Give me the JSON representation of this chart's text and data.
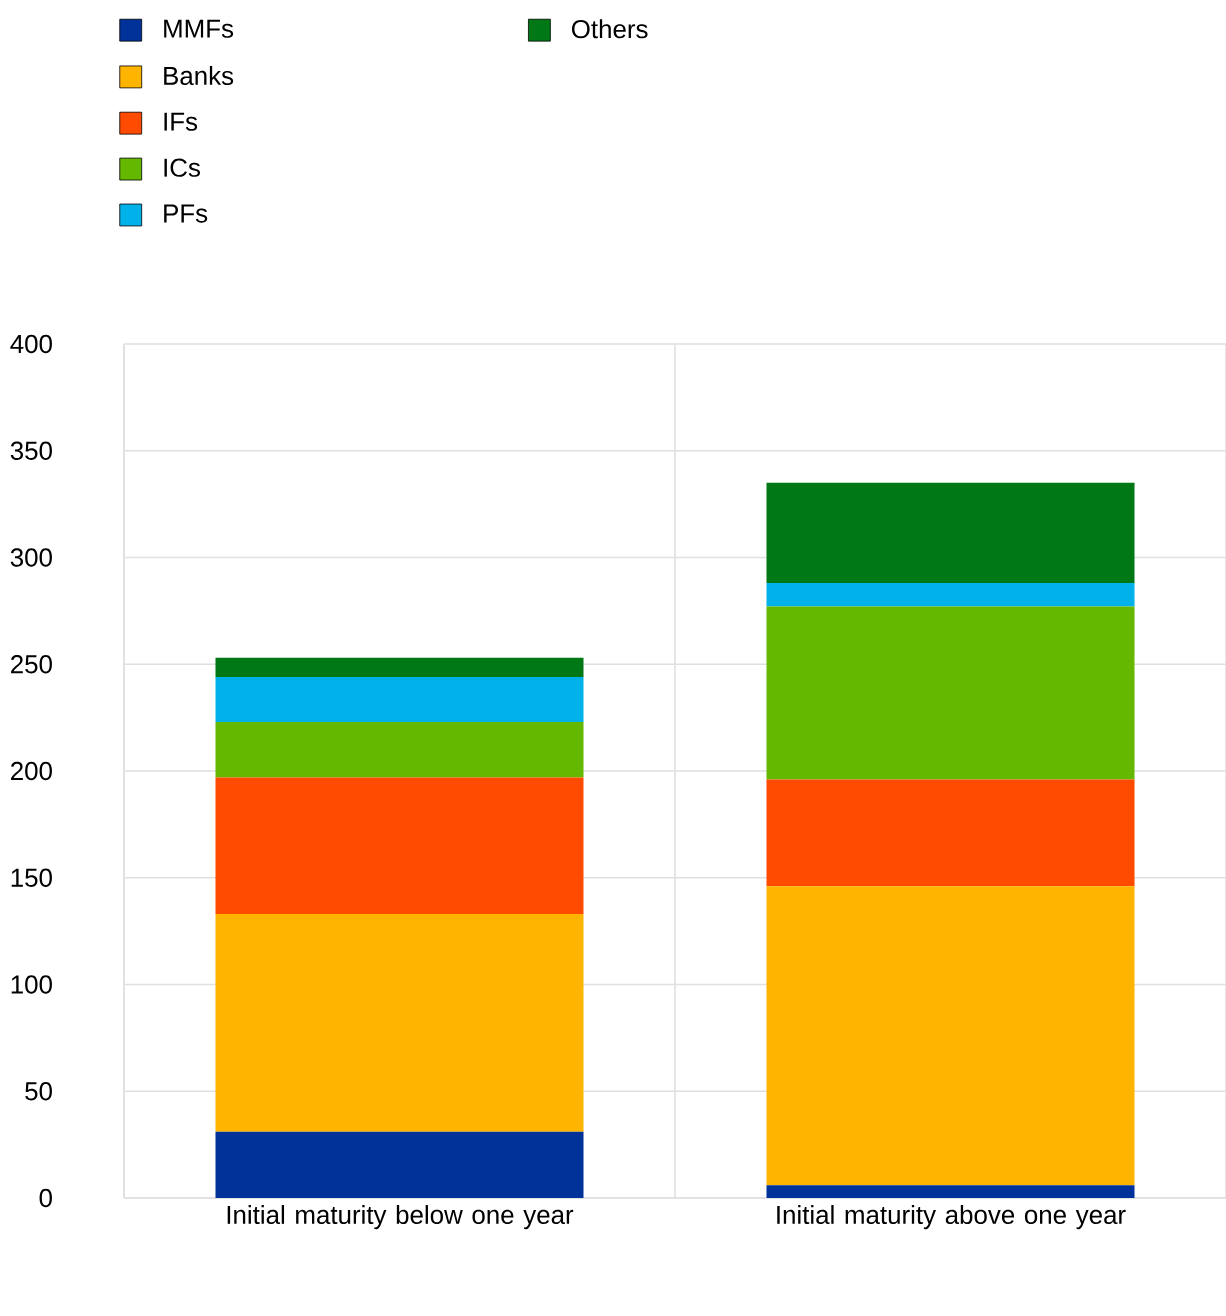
{
  "chart_data": {
    "type": "bar",
    "stacked": true,
    "categories": [
      "Initial maturity below one year",
      "Initial maturity above one year"
    ],
    "series": [
      {
        "name": "MMFs",
        "color": "#003299",
        "values": [
          31,
          6
        ]
      },
      {
        "name": "Banks",
        "color": "#ffb400",
        "values": [
          102,
          140
        ]
      },
      {
        "name": "IFs",
        "color": "#ff4b00",
        "values": [
          64,
          50
        ]
      },
      {
        "name": "ICs",
        "color": "#65b800",
        "values": [
          26,
          81
        ]
      },
      {
        "name": "PFs",
        "color": "#00b1ea",
        "values": [
          21,
          11
        ]
      },
      {
        "name": "Others",
        "color": "#007816",
        "values": [
          9,
          47
        ]
      }
    ],
    "ylim": [
      0,
      400
    ],
    "yticks": [
      0,
      50,
      100,
      150,
      200,
      250,
      300,
      350,
      400
    ],
    "grid": true,
    "legend": "top left"
  }
}
